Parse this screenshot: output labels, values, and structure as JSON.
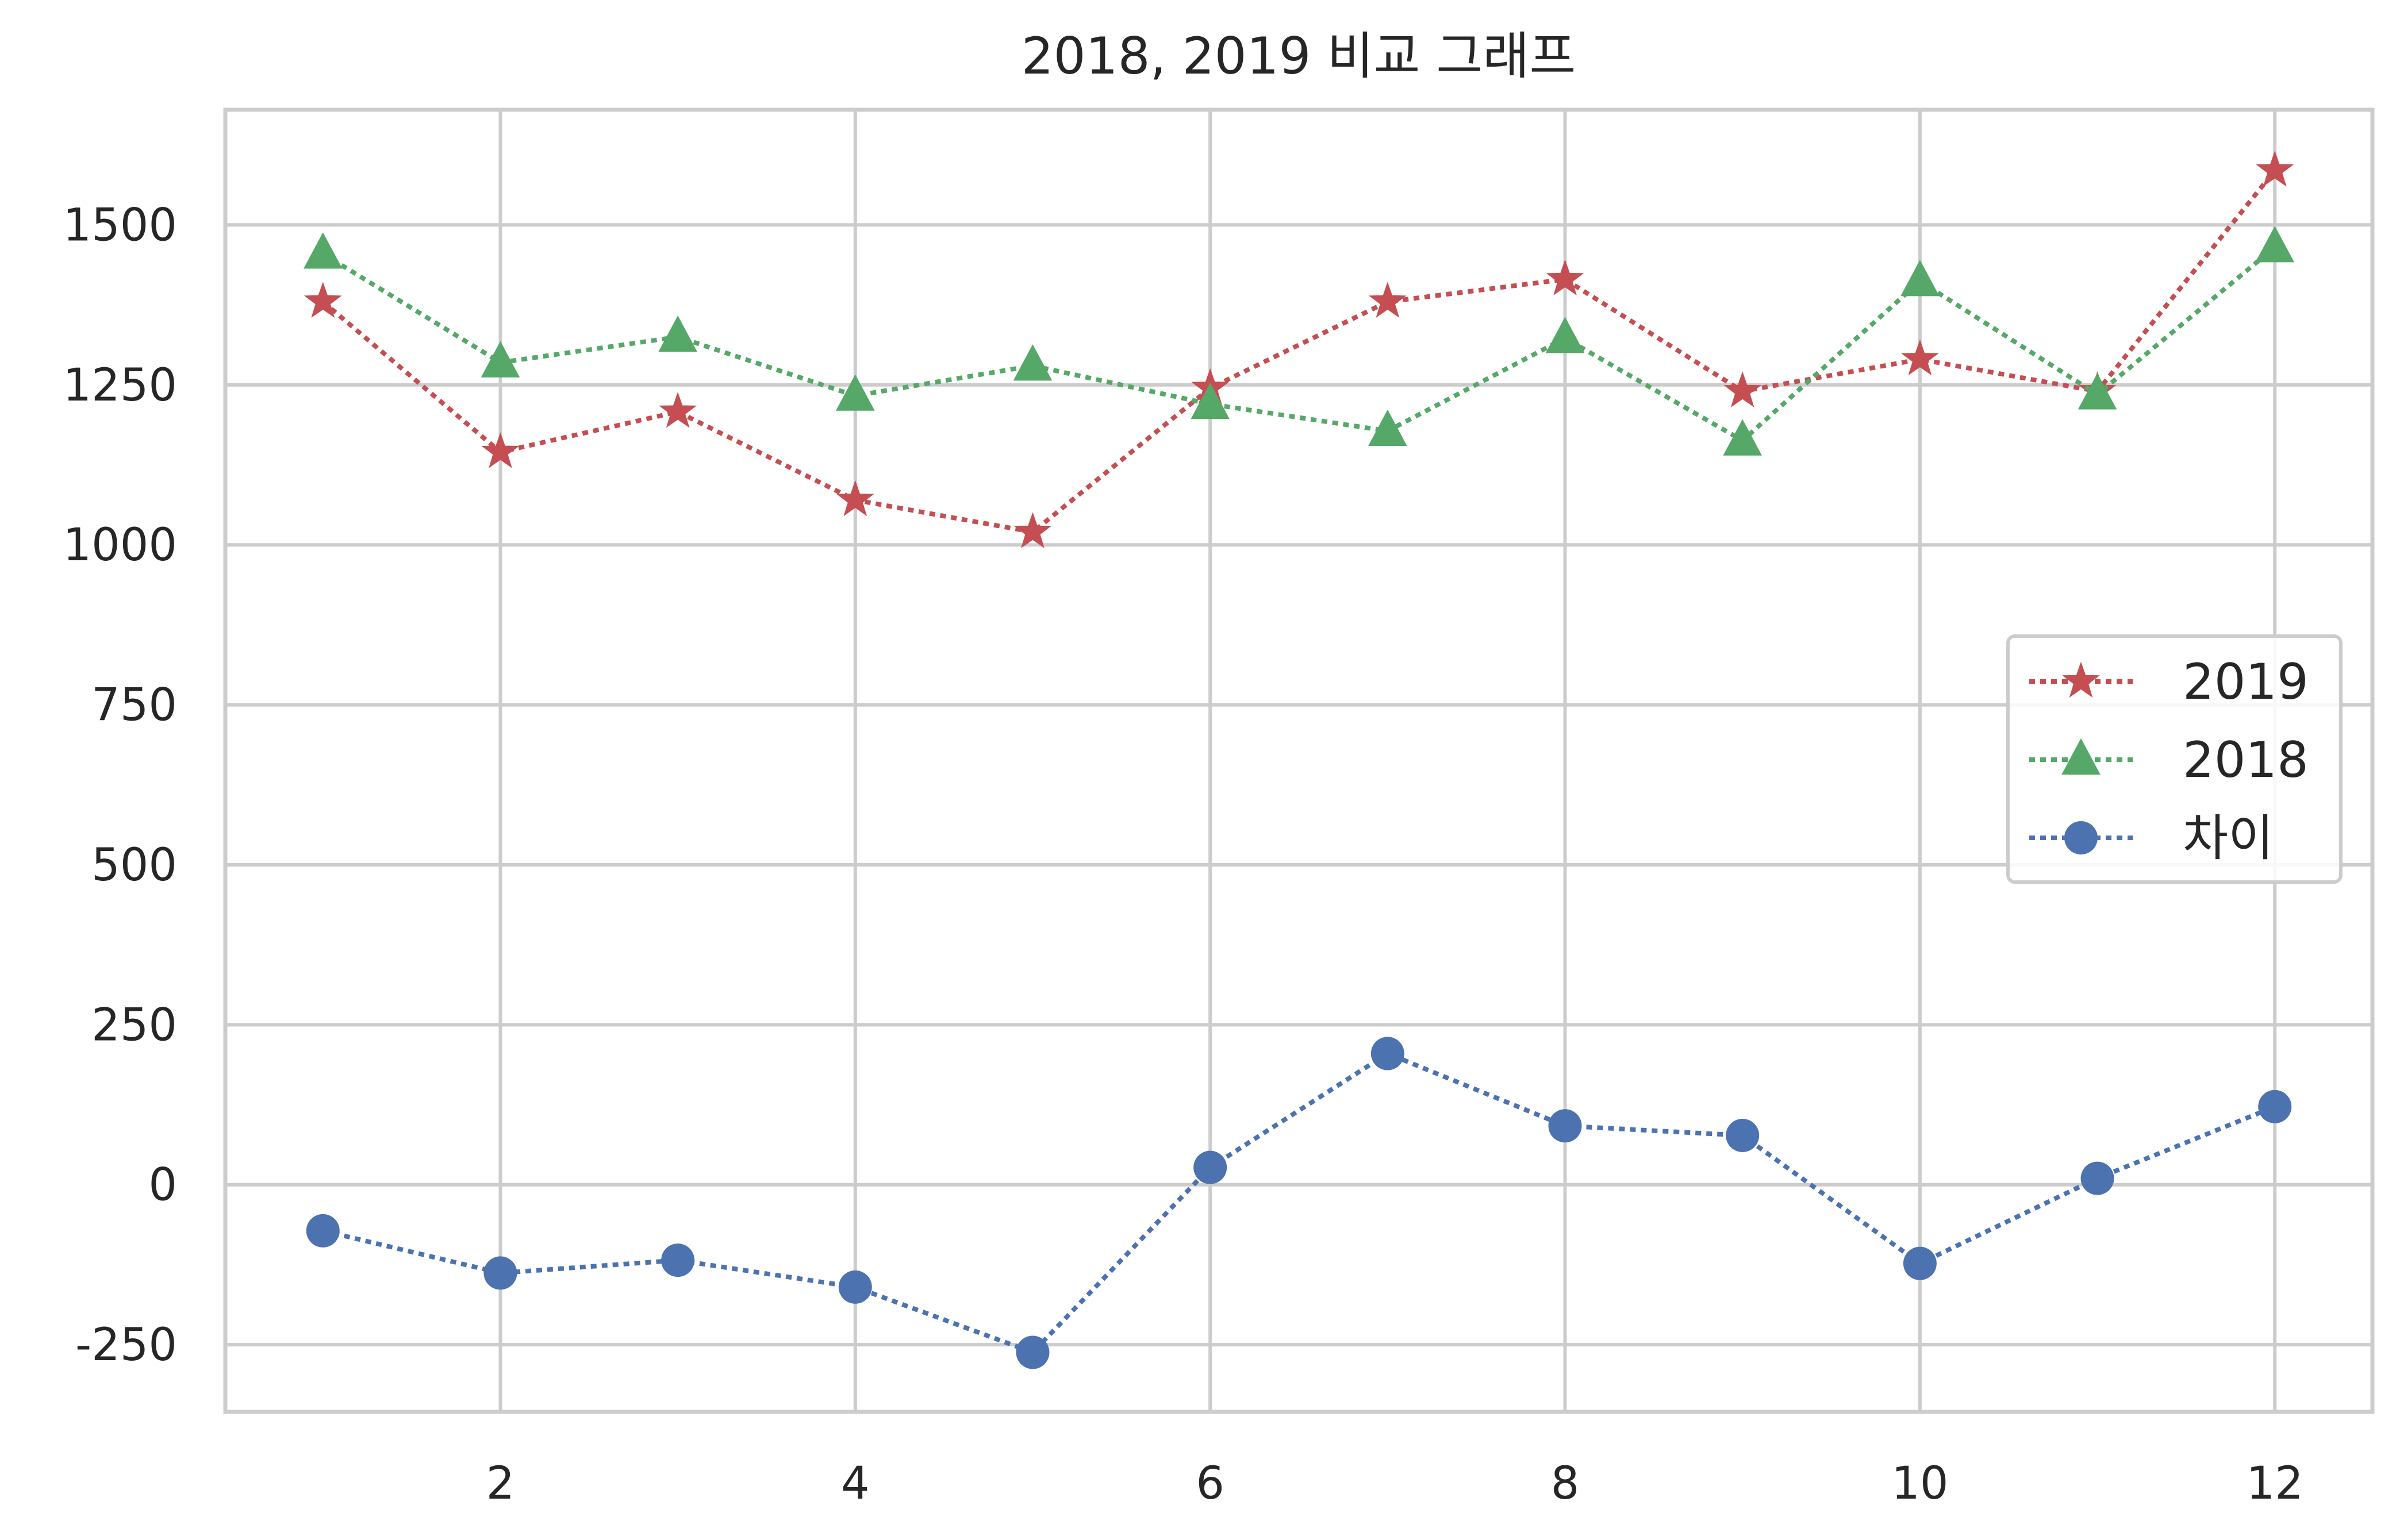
{
  "chart_data": {
    "type": "line",
    "title": "2018, 2019 비교 그래프",
    "xlabel": "",
    "ylabel": "",
    "x": [
      1,
      2,
      3,
      4,
      5,
      6,
      7,
      8,
      9,
      10,
      11,
      12
    ],
    "xlim": [
      0.45,
      12.55
    ],
    "ylim": [
      -355,
      1680
    ],
    "xticks": [
      2,
      4,
      6,
      8,
      10,
      12
    ],
    "xtick_labels": [
      "2",
      "4",
      "6",
      "8",
      "10",
      "12"
    ],
    "yticks": [
      -250,
      0,
      250,
      500,
      750,
      1000,
      1250,
      1500
    ],
    "ytick_labels": [
      "-250",
      "0",
      "250",
      "500",
      "750",
      "1000",
      "1250",
      "1500"
    ],
    "grid": true,
    "legend_position": "center-right",
    "series": [
      {
        "name": "2019",
        "color": "#c44e52",
        "marker": "star",
        "line_style": "dotted",
        "values": [
          1380,
          1145,
          1208,
          1070,
          1020,
          1245,
          1380,
          1415,
          1240,
          1290,
          1240,
          1585
        ]
      },
      {
        "name": "2018",
        "color": "#55a868",
        "marker": "triangle",
        "line_style": "dotted",
        "values": [
          1455,
          1285,
          1325,
          1233,
          1280,
          1220,
          1178,
          1323,
          1163,
          1412,
          1235,
          1465
        ]
      },
      {
        "name": "차이",
        "color": "#4c72b0",
        "marker": "circle",
        "line_style": "dotted",
        "values": [
          -72,
          -138,
          -118,
          -160,
          -262,
          27,
          205,
          92,
          77,
          -123,
          10,
          122
        ]
      }
    ]
  }
}
